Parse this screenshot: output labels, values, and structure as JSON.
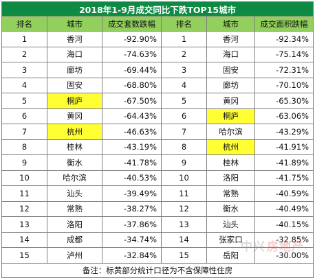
{
  "title": "2018年1-9月成交同比下跌TOP15城市",
  "headers": {
    "rank_left": "排名",
    "city_left": "城市",
    "metric_left": "成交套数跌幅",
    "rank_right": "排名",
    "city_right": "城市",
    "metric_right": "成交面积跌幅"
  },
  "left_rows": [
    {
      "rank": "1",
      "city": "香河",
      "value": "-92.90%"
    },
    {
      "rank": "2",
      "city": "海口",
      "value": "-74.63%"
    },
    {
      "rank": "3",
      "city": "廊坊",
      "value": "-69.44%"
    },
    {
      "rank": "4",
      "city": "固安",
      "value": "-68.80%"
    },
    {
      "rank": "5",
      "city": "桐庐",
      "value": "-67.50%"
    },
    {
      "rank": "6",
      "city": "黄冈",
      "value": "-64.43%"
    },
    {
      "rank": "7",
      "city": "杭州",
      "value": "-46.63%"
    },
    {
      "rank": "8",
      "city": "桂林",
      "value": "-43.19%"
    },
    {
      "rank": "9",
      "city": "衡水",
      "value": "-41.78%"
    },
    {
      "rank": "10",
      "city": "哈尔滨",
      "value": "-40.53%"
    },
    {
      "rank": "11",
      "city": "汕头",
      "value": "-39.49%"
    },
    {
      "rank": "12",
      "city": "常熟",
      "value": "-38.27%"
    },
    {
      "rank": "13",
      "city": "洛阳",
      "value": "-37.86%"
    },
    {
      "rank": "14",
      "city": "成都",
      "value": "-34.74%"
    },
    {
      "rank": "15",
      "city": "泸州",
      "value": "-32.84%"
    }
  ],
  "right_rows": [
    {
      "rank": "1",
      "city": "香河",
      "value": "-92.34%"
    },
    {
      "rank": "2",
      "city": "海口",
      "value": "-75.14%"
    },
    {
      "rank": "3",
      "city": "固安",
      "value": "-72.31%"
    },
    {
      "rank": "4",
      "city": "廊坊",
      "value": "-70.10%"
    },
    {
      "rank": "5",
      "city": "黄冈",
      "value": "-65.30%"
    },
    {
      "rank": "6",
      "city": "桐庐",
      "value": "-63.06%"
    },
    {
      "rank": "7",
      "city": "哈尔滨",
      "value": "-43.29%"
    },
    {
      "rank": "8",
      "city": "杭州",
      "value": "-41.91%"
    },
    {
      "rank": "9",
      "city": "桂林",
      "value": "-41.89%"
    },
    {
      "rank": "10",
      "city": "洛阳",
      "value": "-41.75%"
    },
    {
      "rank": "11",
      "city": "常熟",
      "value": "-40.59%"
    },
    {
      "rank": "12",
      "city": "衡水",
      "value": "-40.49%"
    },
    {
      "rank": "13",
      "city": "汕头",
      "value": "-40.15%"
    },
    {
      "rank": "14",
      "city": "张家口",
      "value": "-32.85%"
    },
    {
      "rank": "15",
      "city": "岳阳",
      "value": "-30.00%"
    }
  ],
  "highlighted_cities": [
    "桐庐",
    "杭州"
  ],
  "note": "备注：标黄部分统计口径为不含保障性住房",
  "watermark": {
    "prefix": "中兴",
    "text": "房地产"
  },
  "colors": {
    "title_bg": "#0f8a45",
    "header_bg": "#92cf5c",
    "highlight": "#ffff33",
    "border": "#7f7f7f"
  }
}
